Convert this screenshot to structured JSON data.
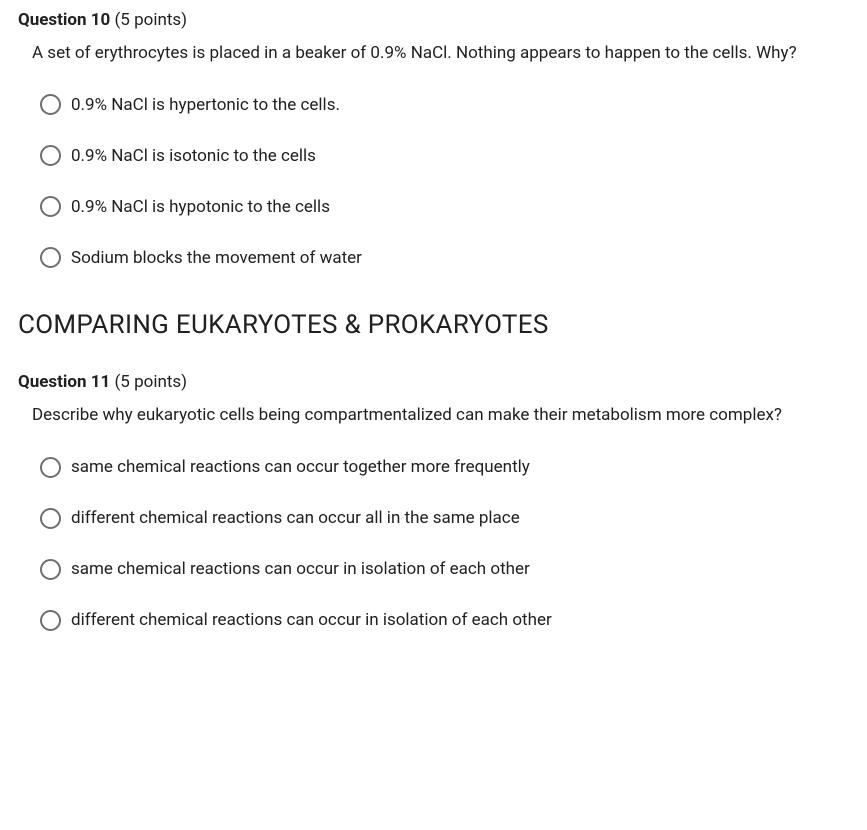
{
  "colors": {
    "text": "#212121",
    "radio_border": "#6e6e6e",
    "background": "#ffffff"
  },
  "typography": {
    "body_fontsize": 17,
    "heading_fontsize": 26
  },
  "question10": {
    "label": "Question 10",
    "points": "(5 points)",
    "prompt": "A set of erythrocytes is placed in a beaker of 0.9% NaCl. Nothing appears to happen to the cells. Why?",
    "options": [
      "0.9% NaCl is hypertonic to the cells.",
      "0.9% NaCl is isotonic to the cells",
      "0.9% NaCl is hypotonic to the cells",
      "Sodium blocks the movement of water"
    ]
  },
  "section_heading": "COMPARING EUKARYOTES & PROKARYOTES",
  "question11": {
    "label": "Question 11",
    "points": "(5 points)",
    "prompt": "Describe why eukaryotic cells being compartmentalized can make their metabolism more complex?",
    "options": [
      "same chemical reactions can occur together more frequently",
      "different chemical reactions can occur all in the same place",
      "same chemical reactions can occur in isolation of each other",
      "different chemical reactions can occur in isolation of each other"
    ]
  }
}
